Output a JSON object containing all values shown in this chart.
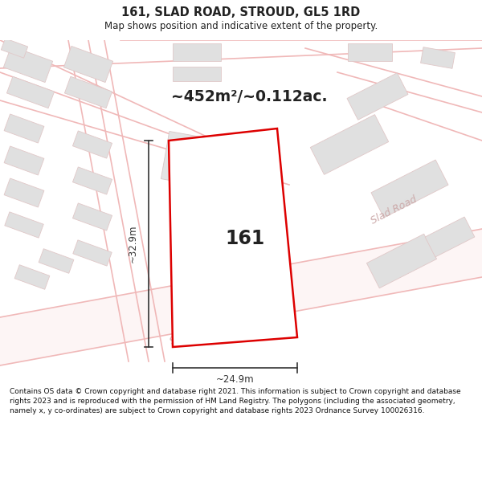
{
  "title": "161, SLAD ROAD, STROUD, GL5 1RD",
  "subtitle": "Map shows position and indicative extent of the property.",
  "area_text": "~452m²/~0.112ac.",
  "property_label": "161",
  "dim_width": "~24.9m",
  "dim_height": "~32.9m",
  "road_label_lower": "Slad Road",
  "road_label_right": "Slad Road",
  "footer": "Contains OS data © Crown copyright and database right 2021. This information is subject to Crown copyright and database rights 2023 and is reproduced with the permission of HM Land Registry. The polygons (including the associated geometry, namely x, y co-ordinates) are subject to Crown copyright and database rights 2023 Ordnance Survey 100026316.",
  "bg_color": "#ffffff",
  "map_bg": "#ffffff",
  "building_fill": "#e0e0e0",
  "building_edge": "#e0c8c8",
  "road_line_color": "#f0b8b8",
  "highlight_color": "#dd0000",
  "highlight_fill": "#ffffff",
  "text_color": "#222222",
  "road_text_color": "#ccaaaa",
  "footer_color": "#111111",
  "dim_color": "#333333"
}
